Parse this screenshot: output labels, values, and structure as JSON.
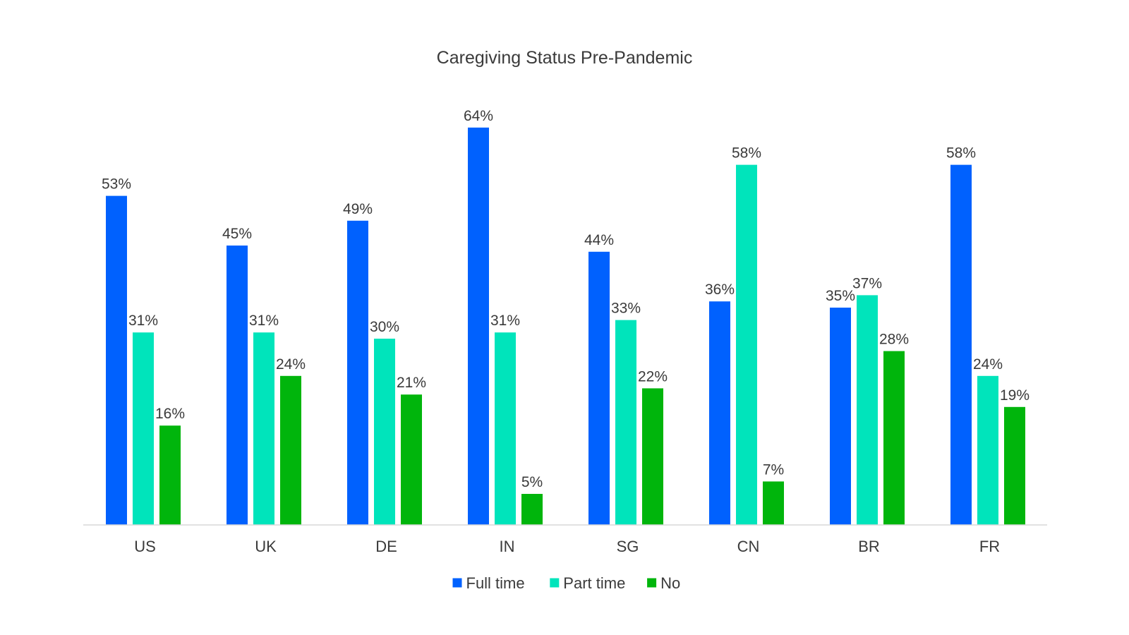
{
  "chart_data": {
    "type": "bar",
    "title": "Caregiving Status Pre-Pandemic",
    "xlabel": "",
    "ylabel": "",
    "ylim": [
      0,
      70
    ],
    "grid": false,
    "legend_position": "bottom",
    "value_suffix": "%",
    "categories": [
      "US",
      "UK",
      "DE",
      "IN",
      "SG",
      "CN",
      "BR",
      "FR"
    ],
    "series": [
      {
        "name": "Full time",
        "color": "#0061fe",
        "values": [
          53,
          45,
          49,
          64,
          44,
          36,
          35,
          58
        ]
      },
      {
        "name": "Part time",
        "color": "#00e4bb",
        "values": [
          31,
          31,
          30,
          31,
          33,
          58,
          37,
          24
        ]
      },
      {
        "name": "No",
        "color": "#00b50c",
        "values": [
          16,
          24,
          21,
          5,
          22,
          7,
          28,
          19
        ]
      }
    ]
  }
}
